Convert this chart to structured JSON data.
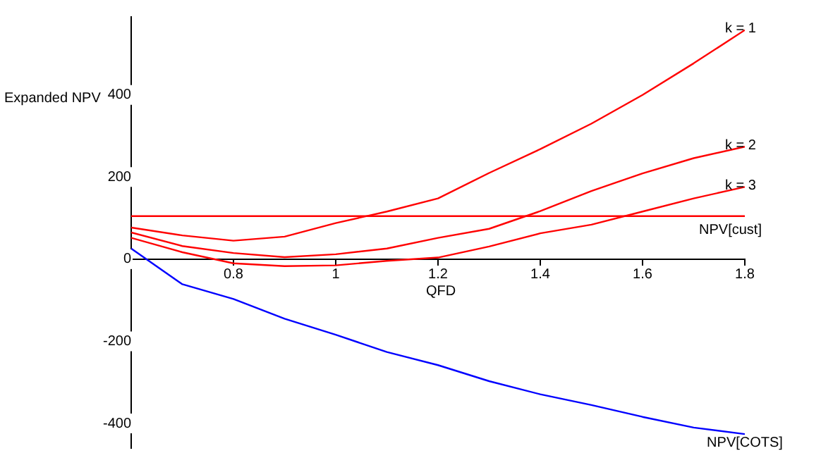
{
  "chart_data": {
    "type": "line",
    "xlabel": "QFD",
    "ylabel": "Expanded NPV",
    "x": [
      0.6,
      0.7,
      0.8,
      0.9,
      1.0,
      1.1,
      1.2,
      1.3,
      1.4,
      1.5,
      1.6,
      1.7,
      1.8
    ],
    "series": [
      {
        "name": "k = 1",
        "color": "#ff0000",
        "values": [
          77,
          58,
          45,
          55,
          88,
          116,
          148,
          210,
          268,
          330,
          400,
          477,
          558
        ]
      },
      {
        "name": "k = 2",
        "color": "#ff0000",
        "values": [
          65,
          32,
          15,
          5,
          12,
          26,
          52,
          74,
          117,
          166,
          209,
          246,
          274
        ]
      },
      {
        "name": "k = 3",
        "color": "#ff0000",
        "values": [
          52,
          17,
          -10,
          -17,
          -15,
          -4,
          4,
          31,
          63,
          84,
          116,
          148,
          176
        ]
      },
      {
        "name": "NPV[COTS]",
        "color": "#0000ff",
        "values": [
          26,
          -61,
          -97,
          -145,
          -184,
          -226,
          -258,
          -297,
          -329,
          -355,
          -384,
          -410,
          -426
        ]
      }
    ],
    "ref_lines": [
      {
        "axis": "y",
        "value": 105,
        "label": "NPV[cust]",
        "color": "#ff0000"
      }
    ],
    "xlim": [
      0.6,
      1.8
    ],
    "xticks": [
      0.8,
      1,
      1.2,
      1.4,
      1.6,
      1.8
    ],
    "ylim": [
      -460,
      590
    ],
    "yticks": [
      -400,
      -200,
      0,
      200,
      400
    ],
    "grid": false,
    "legend": false,
    "marker": "none",
    "line_style": "solid"
  }
}
